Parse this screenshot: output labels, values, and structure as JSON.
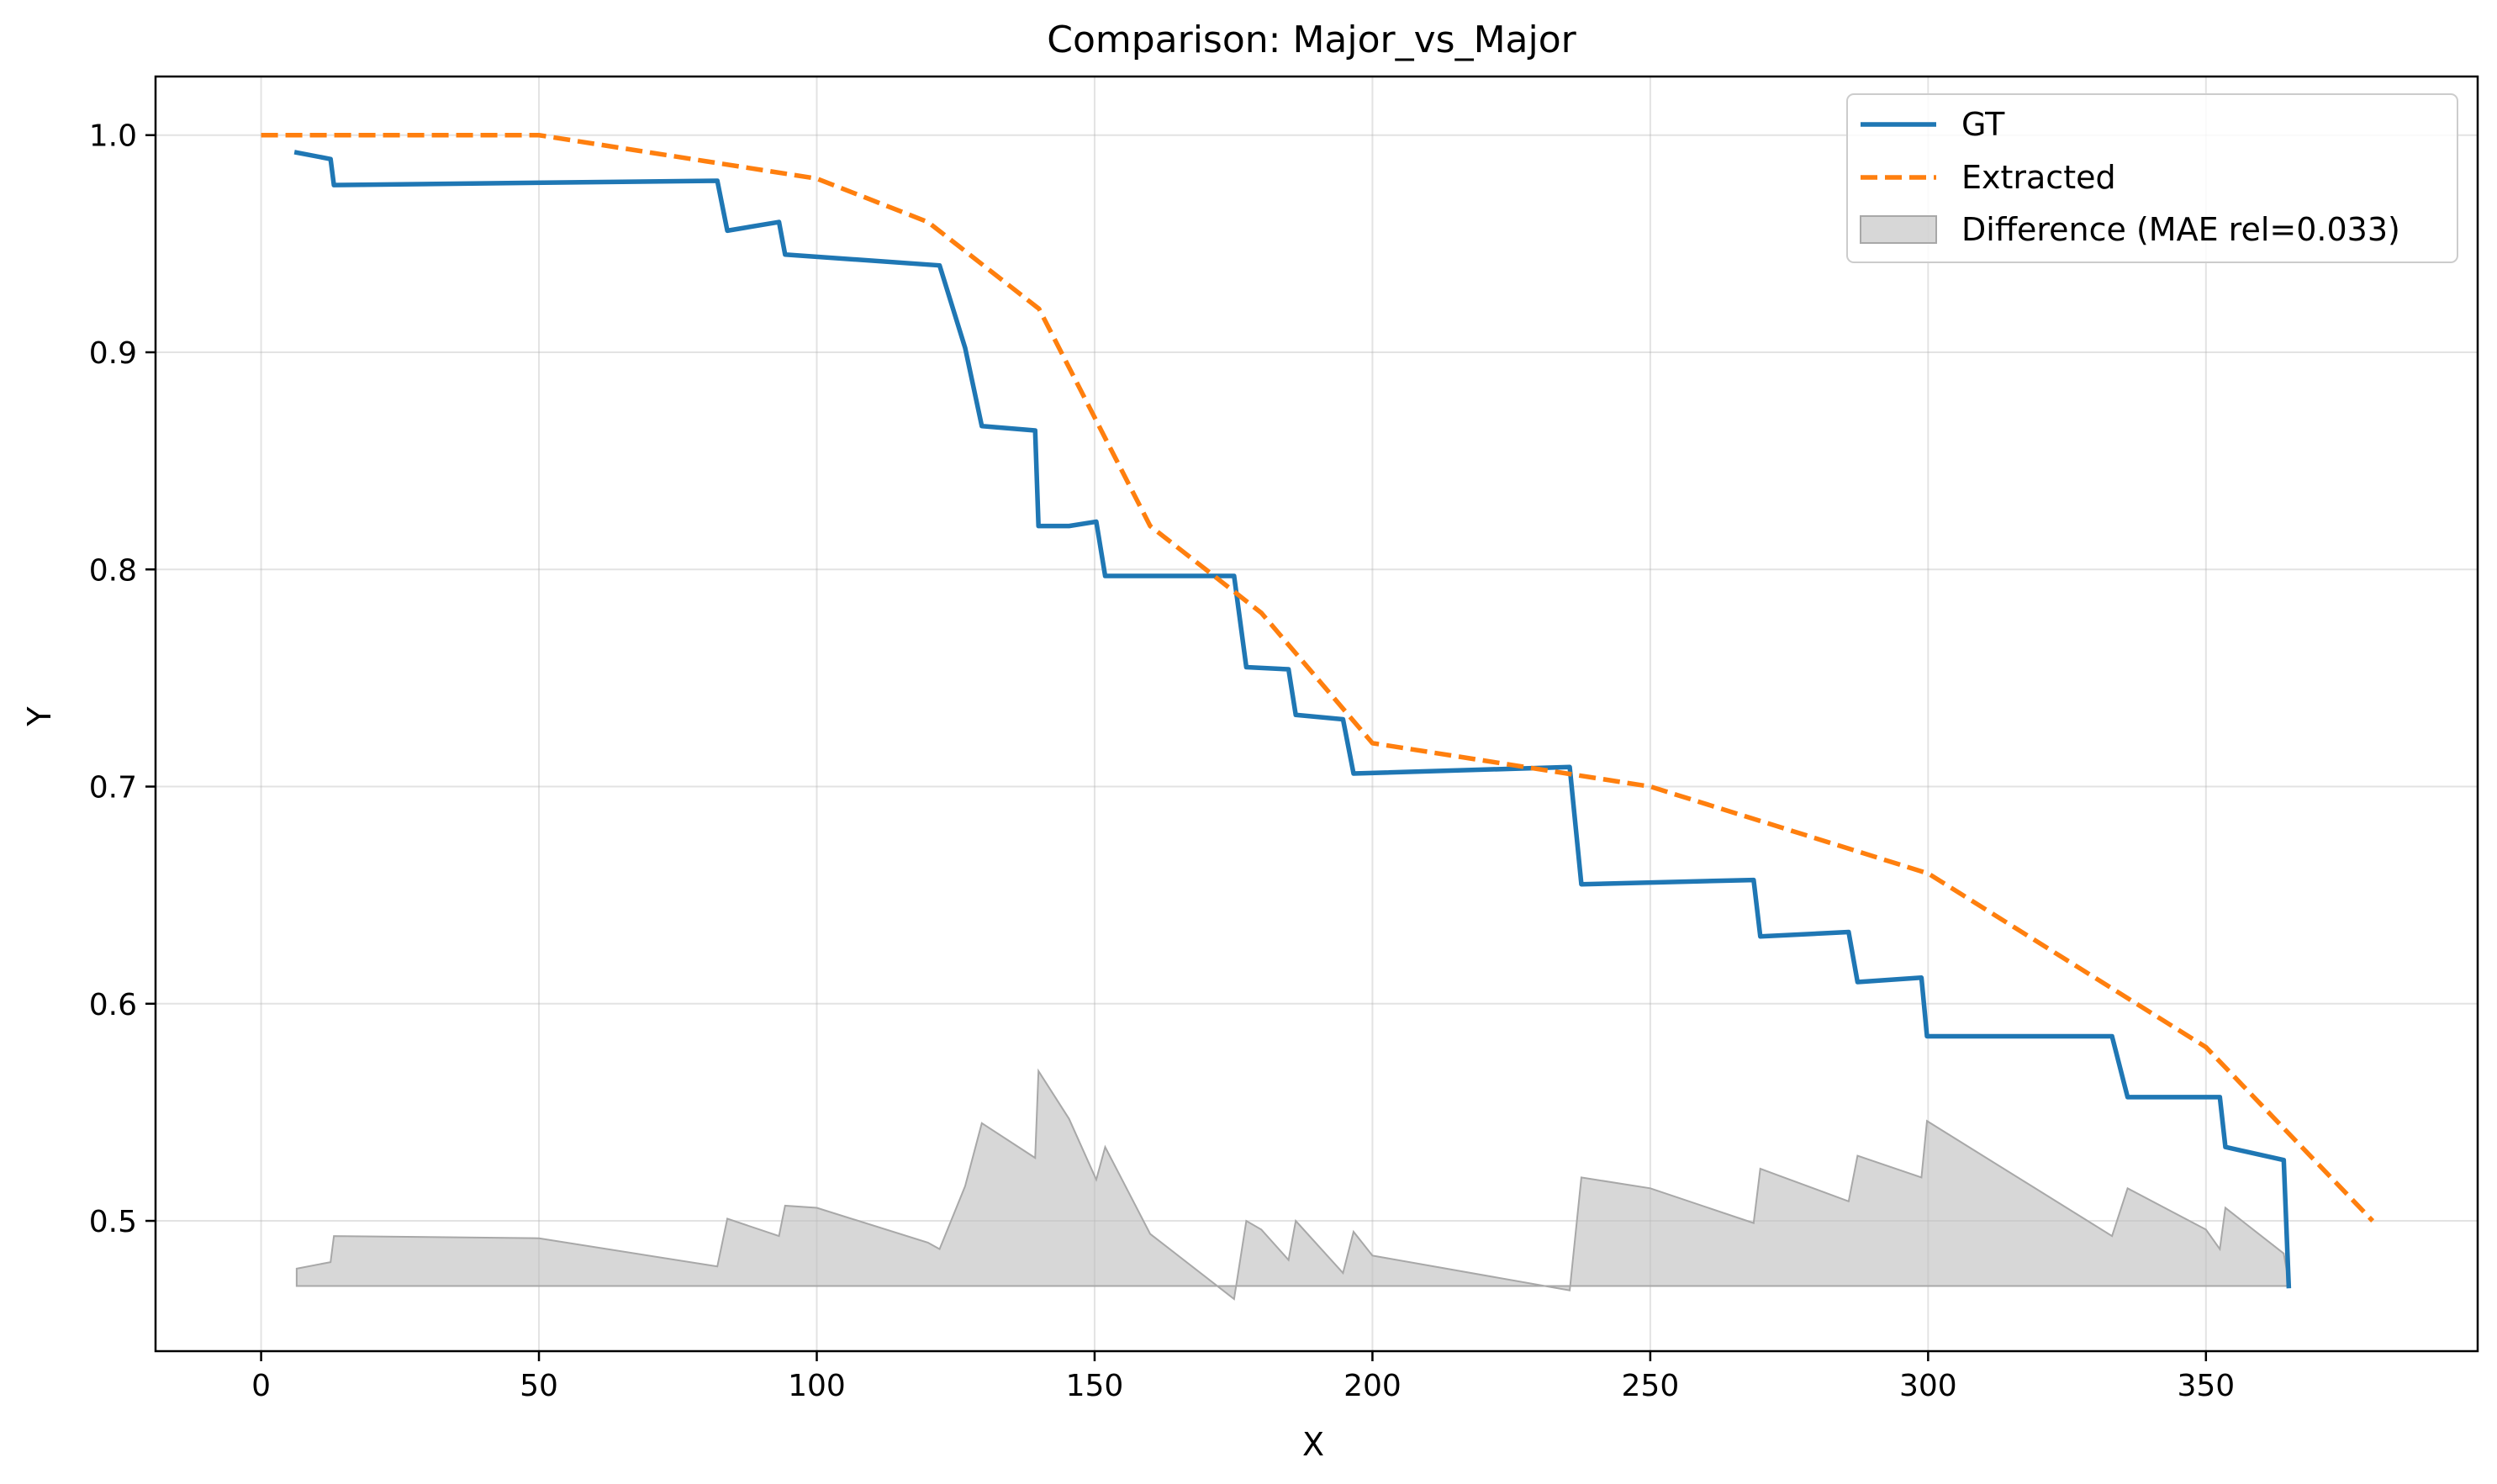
{
  "chart_data": {
    "type": "line",
    "title": "Comparison: Major_vs_Major",
    "xlabel": "X",
    "ylabel": "Y",
    "xlim": [
      -19,
      398.9
    ],
    "ylim": [
      0.44,
      1.027
    ],
    "xticks": [
      0,
      50,
      100,
      150,
      200,
      250,
      300,
      350
    ],
    "yticks": [
      0.5,
      0.6,
      0.7,
      0.8,
      0.9,
      1.0
    ],
    "xtick_labels": [
      "0",
      "50",
      "100",
      "150",
      "200",
      "250",
      "300",
      "350"
    ],
    "ytick_labels": [
      "0.5",
      "0.6",
      "0.7",
      "0.8",
      "0.9",
      "1.0"
    ],
    "grid": true,
    "legend_position": "top-right",
    "series": [
      {
        "name": "GT",
        "color": "#1f77b4",
        "style": "solid",
        "x": [
          6.4,
          12.5,
          13.1,
          82.1,
          83.9,
          93.2,
          94.3,
          122.1,
          126.7,
          129.7,
          139.3,
          139.9,
          145.4,
          150.3,
          151.9,
          175.1,
          177.3,
          184.9,
          186.2,
          194.7,
          196.6,
          235.5,
          237.6,
          268.6,
          269.8,
          285.7,
          287.3,
          298.8,
          299.8,
          333.1,
          335.9,
          352.5,
          353.5,
          364.0,
          364.9
        ],
        "y": [
          0.992,
          0.989,
          0.977,
          0.979,
          0.956,
          0.96,
          0.945,
          0.94,
          0.902,
          0.866,
          0.864,
          0.82,
          0.82,
          0.822,
          0.797,
          0.797,
          0.755,
          0.754,
          0.733,
          0.731,
          0.706,
          0.709,
          0.655,
          0.657,
          0.631,
          0.633,
          0.61,
          0.612,
          0.585,
          0.585,
          0.557,
          0.557,
          0.534,
          0.528,
          0.47
        ]
      },
      {
        "name": "Extracted",
        "color": "#ff7f0e",
        "style": "dashed",
        "x": [
          0,
          50,
          80,
          100,
          120,
          140,
          160,
          180,
          200,
          225,
          250,
          275,
          300,
          325,
          350,
          380
        ],
        "y": [
          1.0,
          1.0,
          0.988,
          0.98,
          0.96,
          0.92,
          0.82,
          0.78,
          0.72,
          0.71,
          0.7,
          0.68,
          0.66,
          0.62,
          0.58,
          0.5
        ]
      }
    ],
    "difference": {
      "name": "Difference (MAE rel=0.033)",
      "color": "#bdbdbd",
      "baseline": 0.47,
      "x": [
        6.4,
        12.5,
        13.1,
        50,
        82.1,
        83.9,
        93.2,
        94.3,
        100,
        120,
        122.1,
        126.7,
        129.7,
        139.3,
        139.9,
        145.4,
        150.3,
        151.9,
        160,
        175.1,
        177.3,
        180,
        184.9,
        186.2,
        194.7,
        196.6,
        200,
        235.5,
        237.6,
        250,
        268.6,
        269.8,
        285.7,
        287.3,
        298.8,
        299.8,
        333.1,
        335.9,
        350,
        352.5,
        353.5,
        364.0,
        364.9
      ],
      "y": [
        0.478,
        0.481,
        0.493,
        0.492,
        0.479,
        0.501,
        0.493,
        0.507,
        0.506,
        0.49,
        0.487,
        0.516,
        0.545,
        0.529,
        0.569,
        0.547,
        0.519,
        0.534,
        0.494,
        0.464,
        0.5,
        0.496,
        0.482,
        0.5,
        0.476,
        0.495,
        0.484,
        0.468,
        0.52,
        0.515,
        0.499,
        0.524,
        0.509,
        0.53,
        0.52,
        0.546,
        0.493,
        0.515,
        0.496,
        0.487,
        0.506,
        0.485,
        0.472
      ]
    }
  }
}
